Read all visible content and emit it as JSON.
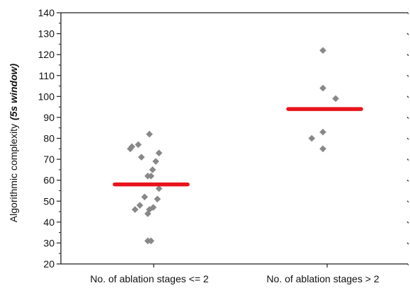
{
  "chart_data": {
    "type": "scatter",
    "title": "",
    "xlabel": "",
    "ylabel": {
      "main": "Algorithmic complexity",
      "suffix": "(5s window)"
    },
    "categories": [
      "No. of ablation stages <= 2",
      "No. of ablation stages > 2"
    ],
    "ylim": [
      20,
      140
    ],
    "yticks": [
      20,
      30,
      40,
      50,
      60,
      70,
      80,
      90,
      100,
      110,
      120,
      130,
      140
    ],
    "grid": false,
    "legend": "none",
    "marker": "diamond",
    "point_color": "#888888",
    "mean_line_color": "#e8141c",
    "series": [
      {
        "category": "No. of ablation stages <= 2",
        "points": [
          {
            "offset": -0.6,
            "y": 75
          },
          {
            "offset": -0.55,
            "y": 76
          },
          {
            "offset": -0.35,
            "y": 77
          },
          {
            "offset": -0.25,
            "y": 71
          },
          {
            "offset": 0.0,
            "y": 82
          },
          {
            "offset": 0.3,
            "y": 73
          },
          {
            "offset": 0.2,
            "y": 69
          },
          {
            "offset": 0.1,
            "y": 65
          },
          {
            "offset": 0.05,
            "y": 62
          },
          {
            "offset": -0.05,
            "y": 62
          },
          {
            "offset": -0.15,
            "y": 52
          },
          {
            "offset": 0.25,
            "y": 51
          },
          {
            "offset": 0.3,
            "y": 56
          },
          {
            "offset": -0.3,
            "y": 48
          },
          {
            "offset": -0.45,
            "y": 46
          },
          {
            "offset": 0.12,
            "y": 47
          },
          {
            "offset": 0.0,
            "y": 46
          },
          {
            "offset": -0.05,
            "y": 44
          },
          {
            "offset": -0.05,
            "y": 31
          },
          {
            "offset": 0.05,
            "y": 31
          }
        ],
        "mean": 58
      },
      {
        "category": "No. of ablation stages > 2",
        "points": [
          {
            "offset": 0.0,
            "y": 122
          },
          {
            "offset": 0.0,
            "y": 104
          },
          {
            "offset": 0.4,
            "y": 99
          },
          {
            "offset": 0.0,
            "y": 83
          },
          {
            "offset": -0.35,
            "y": 80
          },
          {
            "offset": 0.0,
            "y": 75
          }
        ],
        "mean": 94
      }
    ]
  }
}
